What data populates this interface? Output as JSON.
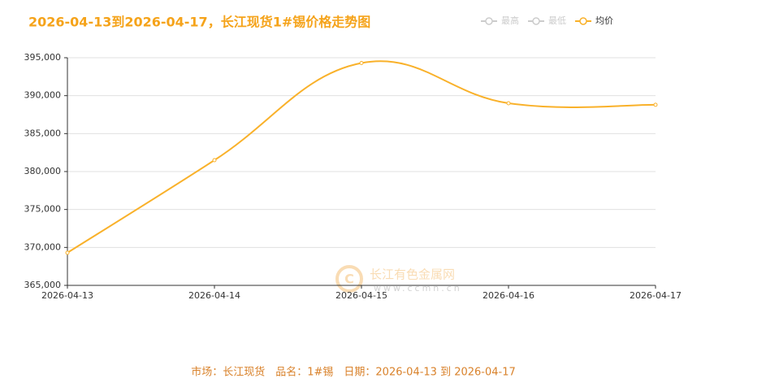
{
  "chart_data": {
    "type": "line",
    "title": "2026-04-13到2026-04-17，长江现货1#锡价格走势图",
    "categories": [
      "2026-04-13",
      "2026-04-14",
      "2026-04-15",
      "2026-04-16",
      "2026-04-17"
    ],
    "series": [
      {
        "name": "最高",
        "color": "#cccccc",
        "values": [
          null,
          null,
          null,
          null,
          null
        ]
      },
      {
        "name": "最低",
        "color": "#cccccc",
        "values": [
          null,
          null,
          null,
          null,
          null
        ]
      },
      {
        "name": "均价",
        "color": "#f9b12a",
        "values": [
          369300,
          381500,
          394300,
          389000,
          388800
        ]
      }
    ],
    "ylim": [
      365000,
      395000
    ],
    "yticks": [
      {
        "value": 365000,
        "label": "365,000"
      },
      {
        "value": 370000,
        "label": "370,000"
      },
      {
        "value": 375000,
        "label": "375,000"
      },
      {
        "value": 380000,
        "label": "380,000"
      },
      {
        "value": 385000,
        "label": "385,000"
      },
      {
        "value": 390000,
        "label": "390,000"
      },
      {
        "value": 395000,
        "label": "395,000"
      }
    ],
    "grid": true,
    "smooth": true,
    "watermark": {
      "name": "长江有色金属网",
      "url": "www.ccmn.cn"
    },
    "footer": "市场：长江现货　品名：1#锡　日期：2026-04-13 到 2026-04-17"
  }
}
